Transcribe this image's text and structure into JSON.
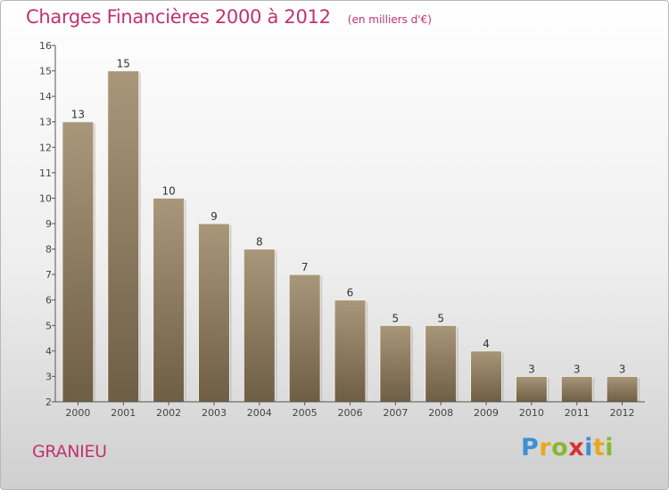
{
  "header": {
    "title": "Charges Financières 2000 à 2012",
    "subtitle": "(en milliers d'€)"
  },
  "footer": {
    "place": "GRANIEU",
    "logo_text": "Proxiti"
  },
  "colors": {
    "title": "#c0336e",
    "bar_light": "#a9977a",
    "bar_dark": "#6e5e44",
    "axis": "#555555"
  },
  "chart_data": {
    "type": "bar",
    "title": "Charges Financières 2000 à 2012",
    "subtitle": "(en milliers d'€)",
    "xlabel": "",
    "ylabel": "",
    "categories": [
      "2000",
      "2001",
      "2002",
      "2003",
      "2004",
      "2005",
      "2006",
      "2007",
      "2008",
      "2009",
      "2010",
      "2011",
      "2012"
    ],
    "values": [
      13,
      15,
      10,
      9,
      8,
      7,
      6,
      5,
      5,
      4,
      3,
      3,
      3
    ],
    "ylim": [
      2,
      16
    ],
    "yticks": [
      2,
      3,
      4,
      5,
      6,
      7,
      8,
      9,
      10,
      11,
      12,
      13,
      14,
      15,
      16
    ],
    "grid": false,
    "data_labels": true
  }
}
